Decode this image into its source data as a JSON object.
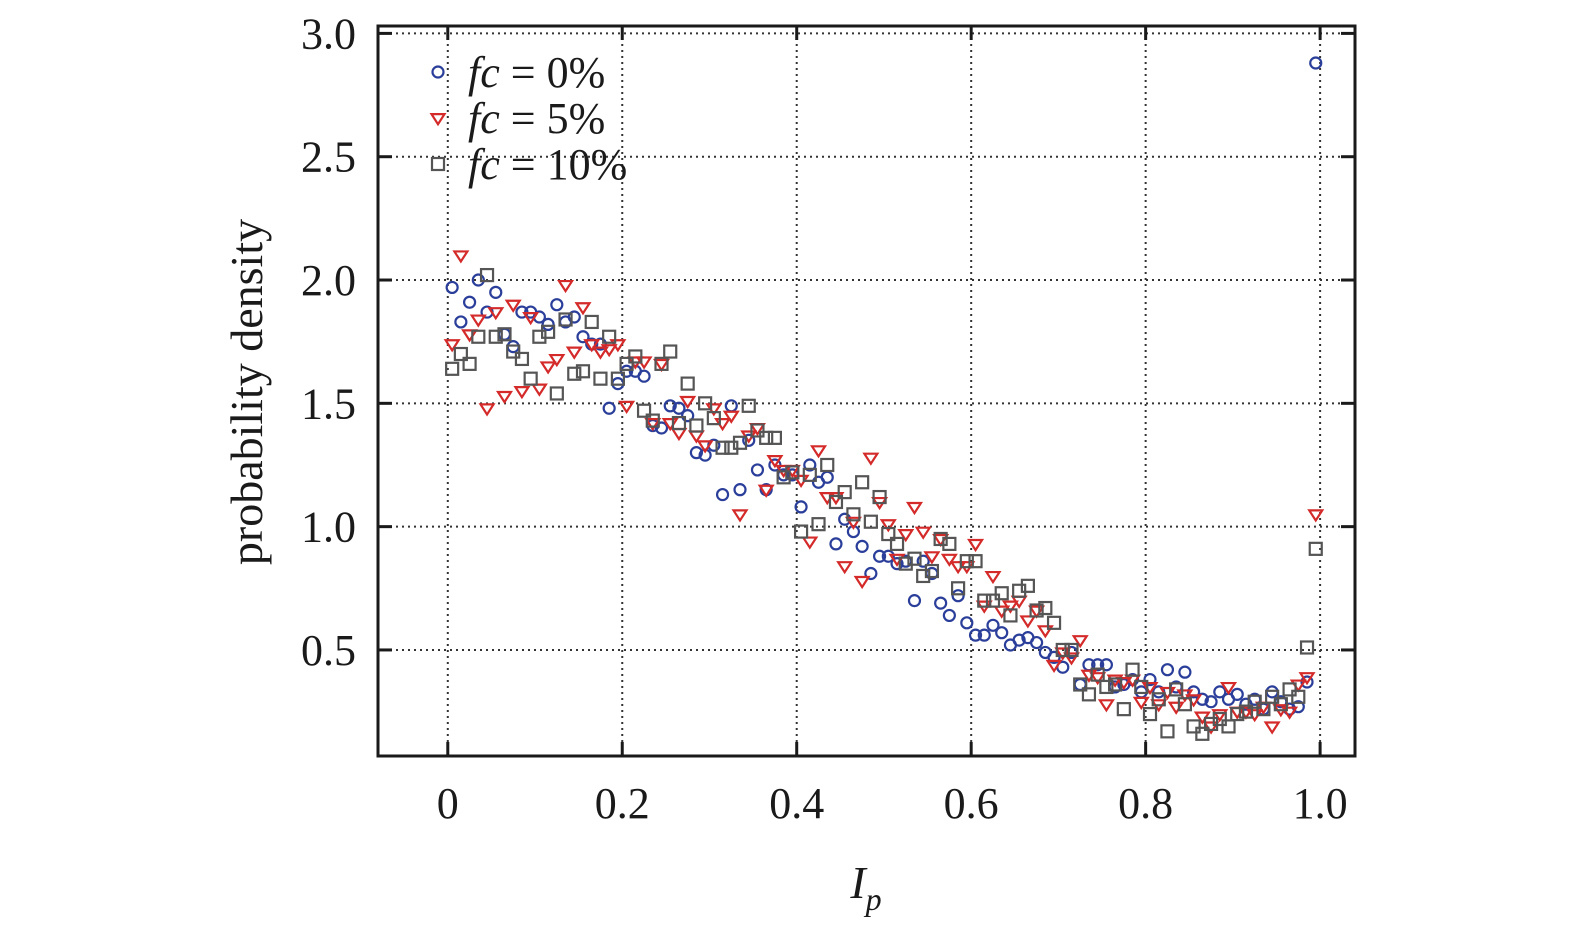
{
  "chart_data": {
    "type": "scatter",
    "title": "",
    "xlabel": "I",
    "xlabel_sub": "p",
    "ylabel": "probability density",
    "xlim": [
      -0.08,
      1.04
    ],
    "ylim": [
      0.07,
      3.03
    ],
    "xticks": [
      0,
      0.2,
      0.4,
      0.6,
      0.8,
      1.0
    ],
    "xtick_labels": [
      "0",
      "0.2",
      "0.4",
      "0.6",
      "0.8",
      "1.0"
    ],
    "yticks": [
      0.5,
      1.0,
      1.5,
      2.0,
      2.5,
      3.0
    ],
    "ytick_labels": [
      "0.5",
      "1.0",
      "1.5",
      "2.0",
      "2.5",
      "3.0"
    ],
    "grid": true,
    "legend_position": "top-left",
    "series": [
      {
        "name": "fc = 0%",
        "name_italic": "fc",
        "name_rest": " = 0%",
        "marker": "circle",
        "color": "#2b3f9a",
        "points": [
          [
            0.005,
            1.97
          ],
          [
            0.015,
            1.83
          ],
          [
            0.025,
            1.91
          ],
          [
            0.035,
            2.0
          ],
          [
            0.045,
            1.87
          ],
          [
            0.055,
            1.95
          ],
          [
            0.065,
            1.78
          ],
          [
            0.075,
            1.73
          ],
          [
            0.085,
            1.87
          ],
          [
            0.095,
            1.87
          ],
          [
            0.105,
            1.85
          ],
          [
            0.115,
            1.82
          ],
          [
            0.125,
            1.9
          ],
          [
            0.135,
            1.83
          ],
          [
            0.145,
            1.85
          ],
          [
            0.155,
            1.77
          ],
          [
            0.165,
            1.74
          ],
          [
            0.175,
            1.74
          ],
          [
            0.185,
            1.48
          ],
          [
            0.195,
            1.58
          ],
          [
            0.205,
            1.63
          ],
          [
            0.215,
            1.63
          ],
          [
            0.225,
            1.61
          ],
          [
            0.235,
            1.41
          ],
          [
            0.245,
            1.4
          ],
          [
            0.255,
            1.49
          ],
          [
            0.265,
            1.48
          ],
          [
            0.275,
            1.45
          ],
          [
            0.285,
            1.3
          ],
          [
            0.295,
            1.29
          ],
          [
            0.305,
            1.33
          ],
          [
            0.315,
            1.13
          ],
          [
            0.325,
            1.49
          ],
          [
            0.335,
            1.15
          ],
          [
            0.345,
            1.35
          ],
          [
            0.355,
            1.23
          ],
          [
            0.365,
            1.15
          ],
          [
            0.375,
            1.25
          ],
          [
            0.385,
            1.21
          ],
          [
            0.395,
            1.21
          ],
          [
            0.405,
            1.08
          ],
          [
            0.415,
            1.25
          ],
          [
            0.425,
            1.18
          ],
          [
            0.435,
            1.2
          ],
          [
            0.445,
            0.93
          ],
          [
            0.455,
            1.03
          ],
          [
            0.465,
            0.98
          ],
          [
            0.475,
            0.92
          ],
          [
            0.485,
            0.81
          ],
          [
            0.495,
            0.88
          ],
          [
            0.505,
            0.88
          ],
          [
            0.515,
            0.85
          ],
          [
            0.525,
            0.86
          ],
          [
            0.535,
            0.7
          ],
          [
            0.545,
            0.86
          ],
          [
            0.555,
            0.81
          ],
          [
            0.565,
            0.69
          ],
          [
            0.575,
            0.64
          ],
          [
            0.585,
            0.72
          ],
          [
            0.595,
            0.61
          ],
          [
            0.605,
            0.56
          ],
          [
            0.615,
            0.56
          ],
          [
            0.625,
            0.6
          ],
          [
            0.635,
            0.57
          ],
          [
            0.645,
            0.52
          ],
          [
            0.655,
            0.54
          ],
          [
            0.665,
            0.55
          ],
          [
            0.675,
            0.53
          ],
          [
            0.685,
            0.49
          ],
          [
            0.695,
            0.47
          ],
          [
            0.705,
            0.43
          ],
          [
            0.715,
            0.49
          ],
          [
            0.725,
            0.36
          ],
          [
            0.735,
            0.44
          ],
          [
            0.745,
            0.44
          ],
          [
            0.755,
            0.44
          ],
          [
            0.765,
            0.35
          ],
          [
            0.775,
            0.36
          ],
          [
            0.785,
            0.38
          ],
          [
            0.795,
            0.33
          ],
          [
            0.805,
            0.38
          ],
          [
            0.815,
            0.33
          ],
          [
            0.825,
            0.42
          ],
          [
            0.835,
            0.35
          ],
          [
            0.845,
            0.41
          ],
          [
            0.855,
            0.33
          ],
          [
            0.865,
            0.3
          ],
          [
            0.875,
            0.29
          ],
          [
            0.885,
            0.33
          ],
          [
            0.895,
            0.3
          ],
          [
            0.905,
            0.32
          ],
          [
            0.915,
            0.28
          ],
          [
            0.925,
            0.3
          ],
          [
            0.935,
            0.26
          ],
          [
            0.945,
            0.33
          ],
          [
            0.955,
            0.29
          ],
          [
            0.965,
            0.26
          ],
          [
            0.975,
            0.27
          ],
          [
            0.985,
            0.37
          ],
          [
            0.995,
            2.88
          ]
        ]
      },
      {
        "name": "fc = 5%",
        "name_italic": "fc",
        "name_rest": " = 5%",
        "marker": "triangle-down",
        "color": "#d42a2a",
        "points": [
          [
            0.005,
            1.74
          ],
          [
            0.015,
            2.1
          ],
          [
            0.025,
            1.78
          ],
          [
            0.035,
            1.84
          ],
          [
            0.045,
            1.48
          ],
          [
            0.055,
            1.87
          ],
          [
            0.065,
            1.53
          ],
          [
            0.075,
            1.9
          ],
          [
            0.085,
            1.55
          ],
          [
            0.095,
            1.85
          ],
          [
            0.105,
            1.56
          ],
          [
            0.115,
            1.65
          ],
          [
            0.125,
            1.68
          ],
          [
            0.135,
            1.98
          ],
          [
            0.145,
            1.71
          ],
          [
            0.155,
            1.89
          ],
          [
            0.165,
            1.74
          ],
          [
            0.175,
            1.71
          ],
          [
            0.185,
            1.72
          ],
          [
            0.195,
            1.74
          ],
          [
            0.205,
            1.49
          ],
          [
            0.215,
            1.67
          ],
          [
            0.225,
            1.67
          ],
          [
            0.235,
            1.42
          ],
          [
            0.245,
            1.66
          ],
          [
            0.255,
            1.42
          ],
          [
            0.265,
            1.38
          ],
          [
            0.275,
            1.51
          ],
          [
            0.285,
            1.37
          ],
          [
            0.295,
            1.33
          ],
          [
            0.305,
            1.48
          ],
          [
            0.315,
            1.42
          ],
          [
            0.325,
            1.45
          ],
          [
            0.335,
            1.05
          ],
          [
            0.345,
            1.37
          ],
          [
            0.355,
            1.4
          ],
          [
            0.365,
            1.15
          ],
          [
            0.375,
            1.27
          ],
          [
            0.385,
            1.23
          ],
          [
            0.395,
            1.23
          ],
          [
            0.405,
            1.19
          ],
          [
            0.415,
            0.94
          ],
          [
            0.425,
            1.31
          ],
          [
            0.435,
            1.12
          ],
          [
            0.445,
            1.12
          ],
          [
            0.455,
            0.84
          ],
          [
            0.465,
            1.02
          ],
          [
            0.475,
            0.78
          ],
          [
            0.485,
            1.28
          ],
          [
            0.495,
            1.1
          ],
          [
            0.505,
            1.01
          ],
          [
            0.515,
            0.87
          ],
          [
            0.525,
            0.97
          ],
          [
            0.535,
            1.08
          ],
          [
            0.545,
            0.98
          ],
          [
            0.555,
            0.88
          ],
          [
            0.565,
            0.95
          ],
          [
            0.575,
            0.87
          ],
          [
            0.585,
            0.84
          ],
          [
            0.595,
            0.84
          ],
          [
            0.605,
            0.93
          ],
          [
            0.615,
            0.68
          ],
          [
            0.625,
            0.8
          ],
          [
            0.635,
            0.66
          ],
          [
            0.645,
            0.68
          ],
          [
            0.655,
            0.7
          ],
          [
            0.665,
            0.62
          ],
          [
            0.675,
            0.66
          ],
          [
            0.685,
            0.58
          ],
          [
            0.695,
            0.44
          ],
          [
            0.705,
            0.49
          ],
          [
            0.715,
            0.47
          ],
          [
            0.725,
            0.54
          ],
          [
            0.735,
            0.4
          ],
          [
            0.745,
            0.39
          ],
          [
            0.755,
            0.28
          ],
          [
            0.765,
            0.38
          ],
          [
            0.775,
            0.37
          ],
          [
            0.785,
            0.38
          ],
          [
            0.795,
            0.29
          ],
          [
            0.805,
            0.35
          ],
          [
            0.815,
            0.28
          ],
          [
            0.825,
            0.33
          ],
          [
            0.835,
            0.27
          ],
          [
            0.845,
            0.32
          ],
          [
            0.855,
            0.3
          ],
          [
            0.865,
            0.23
          ],
          [
            0.875,
            0.19
          ],
          [
            0.885,
            0.24
          ],
          [
            0.895,
            0.35
          ],
          [
            0.905,
            0.25
          ],
          [
            0.915,
            0.25
          ],
          [
            0.925,
            0.24
          ],
          [
            0.935,
            0.27
          ],
          [
            0.945,
            0.19
          ],
          [
            0.955,
            0.26
          ],
          [
            0.965,
            0.25
          ],
          [
            0.975,
            0.36
          ],
          [
            0.985,
            0.39
          ],
          [
            0.995,
            1.05
          ]
        ]
      },
      {
        "name": "fc = 10%",
        "name_italic": "fc",
        "name_rest": " = 10%",
        "marker": "square",
        "color": "#555555",
        "points": [
          [
            0.005,
            1.64
          ],
          [
            0.015,
            1.7
          ],
          [
            0.025,
            1.66
          ],
          [
            0.035,
            1.77
          ],
          [
            0.045,
            2.02
          ],
          [
            0.055,
            1.77
          ],
          [
            0.065,
            1.78
          ],
          [
            0.075,
            1.71
          ],
          [
            0.085,
            1.68
          ],
          [
            0.095,
            1.6
          ],
          [
            0.105,
            1.77
          ],
          [
            0.115,
            1.79
          ],
          [
            0.125,
            1.54
          ],
          [
            0.135,
            1.84
          ],
          [
            0.145,
            1.62
          ],
          [
            0.155,
            1.63
          ],
          [
            0.165,
            1.83
          ],
          [
            0.175,
            1.6
          ],
          [
            0.185,
            1.77
          ],
          [
            0.195,
            1.6
          ],
          [
            0.205,
            1.66
          ],
          [
            0.215,
            1.69
          ],
          [
            0.225,
            1.47
          ],
          [
            0.235,
            1.43
          ],
          [
            0.245,
            1.66
          ],
          [
            0.255,
            1.71
          ],
          [
            0.265,
            1.42
          ],
          [
            0.275,
            1.58
          ],
          [
            0.285,
            1.41
          ],
          [
            0.295,
            1.5
          ],
          [
            0.305,
            1.44
          ],
          [
            0.315,
            1.32
          ],
          [
            0.325,
            1.32
          ],
          [
            0.335,
            1.34
          ],
          [
            0.345,
            1.49
          ],
          [
            0.355,
            1.39
          ],
          [
            0.365,
            1.36
          ],
          [
            0.375,
            1.36
          ],
          [
            0.385,
            1.2
          ],
          [
            0.395,
            1.22
          ],
          [
            0.405,
            0.98
          ],
          [
            0.415,
            1.21
          ],
          [
            0.425,
            1.01
          ],
          [
            0.435,
            1.25
          ],
          [
            0.445,
            1.1
          ],
          [
            0.455,
            1.14
          ],
          [
            0.465,
            1.05
          ],
          [
            0.475,
            1.18
          ],
          [
            0.485,
            1.02
          ],
          [
            0.495,
            1.12
          ],
          [
            0.505,
            0.97
          ],
          [
            0.515,
            0.93
          ],
          [
            0.525,
            0.85
          ],
          [
            0.535,
            0.87
          ],
          [
            0.545,
            0.8
          ],
          [
            0.555,
            0.82
          ],
          [
            0.565,
            0.95
          ],
          [
            0.575,
            0.93
          ],
          [
            0.585,
            0.75
          ],
          [
            0.595,
            0.86
          ],
          [
            0.605,
            0.86
          ],
          [
            0.615,
            0.7
          ],
          [
            0.625,
            0.7
          ],
          [
            0.635,
            0.73
          ],
          [
            0.645,
            0.64
          ],
          [
            0.655,
            0.74
          ],
          [
            0.665,
            0.76
          ],
          [
            0.675,
            0.66
          ],
          [
            0.685,
            0.67
          ],
          [
            0.695,
            0.61
          ],
          [
            0.705,
            0.5
          ],
          [
            0.715,
            0.5
          ],
          [
            0.725,
            0.36
          ],
          [
            0.735,
            0.32
          ],
          [
            0.745,
            0.4
          ],
          [
            0.755,
            0.35
          ],
          [
            0.765,
            0.36
          ],
          [
            0.775,
            0.26
          ],
          [
            0.785,
            0.42
          ],
          [
            0.795,
            0.35
          ],
          [
            0.805,
            0.24
          ],
          [
            0.815,
            0.3
          ],
          [
            0.825,
            0.17
          ],
          [
            0.835,
            0.34
          ],
          [
            0.845,
            0.28
          ],
          [
            0.855,
            0.19
          ],
          [
            0.865,
            0.16
          ],
          [
            0.875,
            0.2
          ],
          [
            0.885,
            0.22
          ],
          [
            0.895,
            0.19
          ],
          [
            0.905,
            0.24
          ],
          [
            0.915,
            0.25
          ],
          [
            0.925,
            0.29
          ],
          [
            0.935,
            0.26
          ],
          [
            0.945,
            0.31
          ],
          [
            0.955,
            0.28
          ],
          [
            0.965,
            0.34
          ],
          [
            0.975,
            0.31
          ],
          [
            0.985,
            0.51
          ],
          [
            0.995,
            0.91
          ]
        ]
      }
    ]
  }
}
